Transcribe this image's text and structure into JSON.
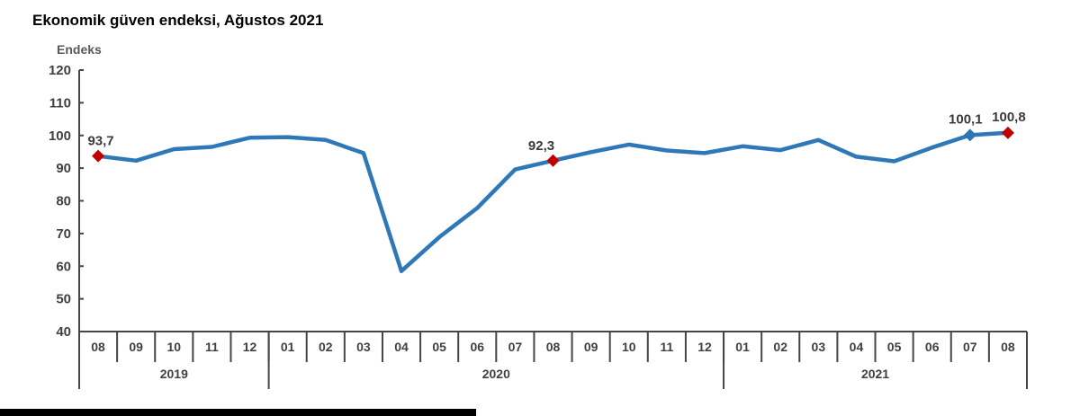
{
  "page": {
    "title": "Ekonomik güven endeksi, Ağustos 2021"
  },
  "chart_data": {
    "type": "line",
    "title": "Ekonomik güven endeksi, Ağustos 2021",
    "ylabel": "Endeks",
    "xlabel": "",
    "ylim": [
      40,
      120
    ],
    "ytick_step": 10,
    "grid": false,
    "legend": "none",
    "x_months": [
      "08",
      "09",
      "10",
      "11",
      "12",
      "01",
      "02",
      "03",
      "04",
      "05",
      "06",
      "07",
      "08",
      "09",
      "10",
      "11",
      "12",
      "01",
      "02",
      "03",
      "04",
      "05",
      "06",
      "07",
      "08"
    ],
    "year_groups": [
      {
        "label": "2019",
        "months": 5
      },
      {
        "label": "2020",
        "months": 12
      },
      {
        "label": "2021",
        "months": 8
      }
    ],
    "series": [
      {
        "name": "Ekonomik güven endeksi",
        "values": [
          93.7,
          92.3,
          95.8,
          96.5,
          99.3,
          99.5,
          98.6,
          94.6,
          58.5,
          68.9,
          77.8,
          89.6,
          92.3,
          94.9,
          97.2,
          95.4,
          94.6,
          96.7,
          95.5,
          98.6,
          93.5,
          92.1,
          96.3,
          100.1,
          100.8
        ]
      }
    ],
    "annotated_points": [
      {
        "index": 0,
        "label": "93,7",
        "marker_color": "#C00000"
      },
      {
        "index": 12,
        "label": "92,3",
        "marker_color": "#C00000"
      },
      {
        "index": 23,
        "label": "100,1",
        "marker_color": "#2E75B6"
      },
      {
        "index": 24,
        "label": "100,8",
        "marker_color": "#C00000"
      }
    ],
    "colors": {
      "line": "#2E78B8",
      "marker_red": "#C00000",
      "marker_blue": "#2E75B6",
      "axis": "#454545",
      "tick_text": "#404040",
      "title_text": "#000000"
    }
  }
}
